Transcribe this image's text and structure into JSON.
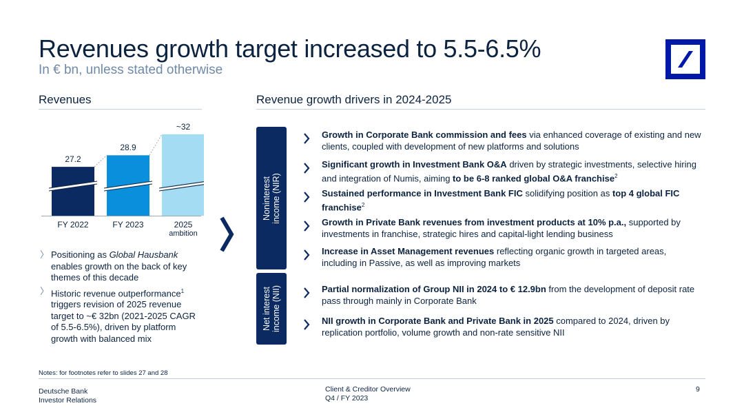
{
  "header": {
    "title": "Revenues growth target increased to 5.5-6.5%",
    "subtitle": "In € bn, unless stated otherwise"
  },
  "left": {
    "heading": "Revenues",
    "bullets": [
      {
        "pre": "Positioning as ",
        "em": "Global Hausbank",
        "post": " enables growth on the back of key themes of this decade"
      },
      {
        "pre": "Historic revenue outperformance",
        "sup": "1",
        "post": " triggers revision of 2025 revenue target to ~€ 32bn (2021-2025 CAGR of 5.5-6.5%), driven by platform growth with balanced mix"
      }
    ]
  },
  "right": {
    "heading": "Revenue growth drivers in 2024-2025",
    "groups": [
      {
        "label_1": "Noninterest",
        "label_2": "income (NIR)"
      },
      {
        "label_1": "Net interest",
        "label_2": "income (NII)"
      }
    ],
    "drivers": [
      {
        "bold": "Growth in Corporate Bank commission and fees",
        "text": " via enhanced coverage of existing and new clients, coupled with development of new platforms and solutions"
      },
      {
        "bold": "Significant growth in Investment Bank O&A",
        "text": " driven by strategic investments, selective hiring and integration of Numis, aiming ",
        "bold2": "to be 6-8 ranked global O&A franchise",
        "sup": "2"
      },
      {
        "bold": "Sustained performance in Investment Bank FIC",
        "text": " solidifying position as ",
        "bold2": "top 4 global FIC franchise",
        "sup": "2"
      },
      {
        "bold": "Growth in Private Bank revenues from investment products at 10% p.a.,",
        "text": " supported by investments in franchise, strategic hires and capital-light lending business"
      },
      {
        "bold": "Increase in Asset Management revenues",
        "text": " reflecting organic growth in targeted areas, including in Passive, as well as improving markets"
      },
      {
        "bold": "Partial normalization of Group NII in 2024 to € 12.9bn",
        "text": " from the development of deposit rate pass through mainly in Corporate Bank"
      },
      {
        "bold": "NII growth in Corporate Bank and Private Bank in 2025",
        "text": " compared to 2024, driven by replication portfolio, volume growth and non-rate sensitive NII"
      }
    ]
  },
  "chart_data": {
    "type": "bar",
    "categories": [
      "FY 2022",
      "FY 2023",
      "2025 ambition"
    ],
    "category_lines": [
      [
        "FY 2022"
      ],
      [
        "FY 2023"
      ],
      [
        "2025",
        "ambition"
      ]
    ],
    "values": [
      27.2,
      28.9,
      32
    ],
    "value_labels": [
      "27.2",
      "28.9",
      "~32"
    ],
    "colors": [
      "#0c2a62",
      "#0a8fdc",
      "#a3dcf3"
    ],
    "axis_break": true,
    "title": "",
    "xlabel": "",
    "ylabel": ""
  },
  "footer": {
    "notes": "Notes: for footnotes refer to slides 27 and 28",
    "company": "Deutsche Bank",
    "division": "Investor Relations",
    "doc_title": "Client & Creditor Overview",
    "period": "Q4 / FY 2023",
    "page": "9"
  },
  "colors": {
    "navy": "#0c2340",
    "accent_blue": "#0018a8",
    "muted": "#6f8aa8",
    "rule": "#c5cfdb"
  },
  "icons": [
    "deutsche-bank-logo",
    "chevron-right-icon"
  ]
}
